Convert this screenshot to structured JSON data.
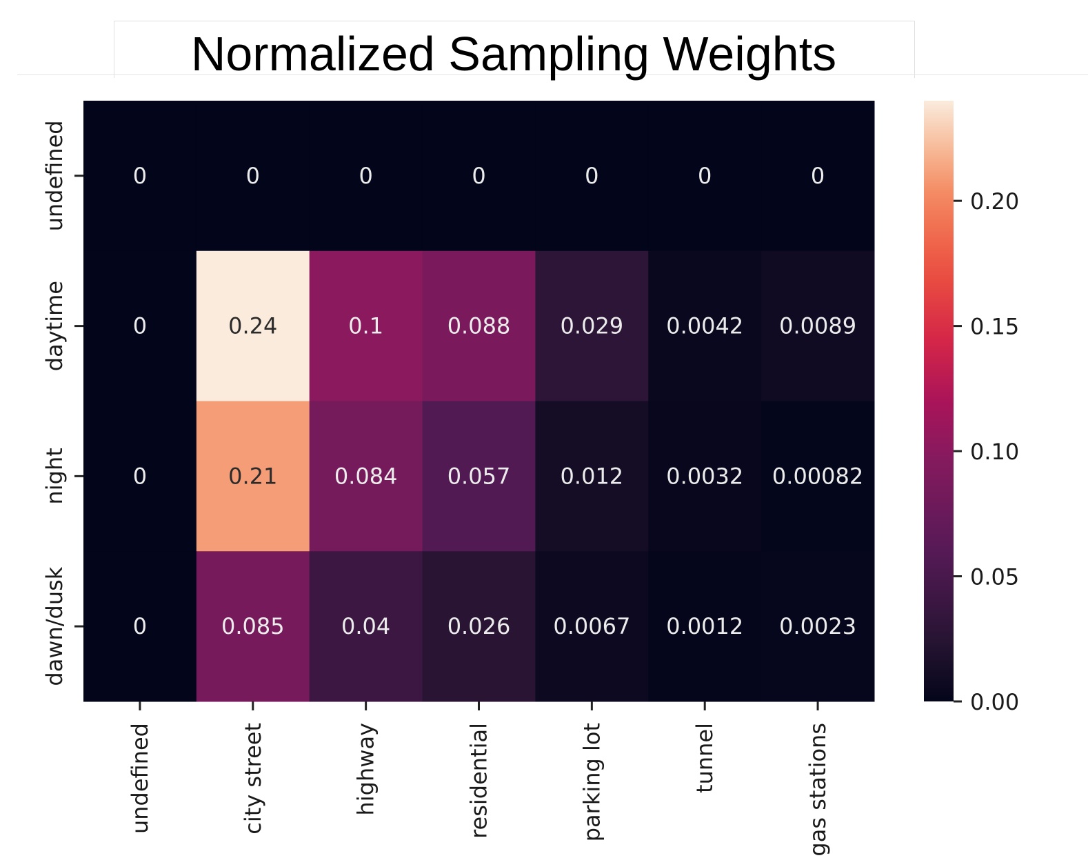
{
  "chart_data": {
    "type": "heatmap",
    "title": "Normalized Sampling Weights",
    "xlabel": "",
    "ylabel": "",
    "x_categories": [
      "undefined",
      "city street",
      "highway",
      "residential",
      "parking lot",
      "tunnel",
      "gas stations"
    ],
    "y_categories": [
      "undefined",
      "daytime",
      "night",
      "dawn/dusk"
    ],
    "values": [
      [
        0,
        0,
        0,
        0,
        0,
        0,
        0
      ],
      [
        0,
        0.24,
        0.1,
        0.088,
        0.029,
        0.0042,
        0.0089
      ],
      [
        0,
        0.21,
        0.084,
        0.057,
        0.012,
        0.0032,
        0.00082
      ],
      [
        0,
        0.085,
        0.04,
        0.026,
        0.0067,
        0.0012,
        0.0023
      ]
    ],
    "cell_labels": [
      [
        "0",
        "0",
        "0",
        "0",
        "0",
        "0",
        "0"
      ],
      [
        "0",
        "0.24",
        "0.1",
        "0.088",
        "0.029",
        "0.0042",
        "0.0089"
      ],
      [
        "0",
        "0.21",
        "0.084",
        "0.057",
        "0.012",
        "0.0032",
        "0.00082"
      ],
      [
        "0",
        "0.085",
        "0.04",
        "0.026",
        "0.0067",
        "0.0012",
        "0.0023"
      ]
    ],
    "colorbar": {
      "range": [
        0,
        0.24
      ],
      "ticks": [
        0,
        0.05,
        0.1,
        0.15,
        0.2
      ],
      "tick_labels": [
        "0.00",
        "0.05",
        "0.10",
        "0.15",
        "0.20"
      ],
      "colormap": "rocket"
    },
    "grid": false,
    "legend": "colorbar right"
  }
}
